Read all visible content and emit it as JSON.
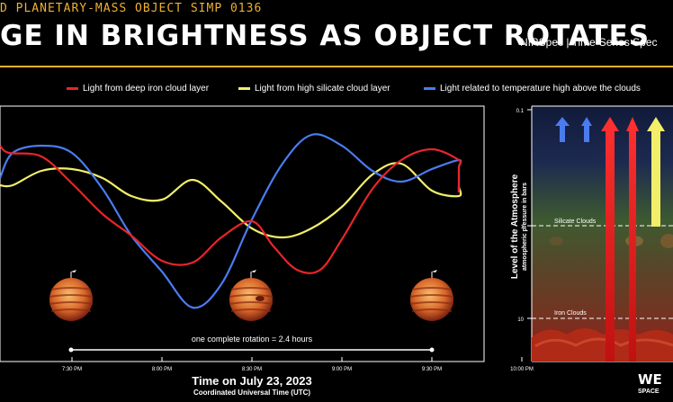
{
  "header": {
    "subtitle": "D PLANETARY-MASS OBJECT SIMP 0136",
    "title": "GE IN BRIGHTNESS AS OBJECT ROTATES",
    "instrument": "NIRSpec | Time-Series Spec"
  },
  "colors": {
    "iron": "#e8252a",
    "silicate": "#f2ee6a",
    "temperature": "#4a7cf0",
    "accent": "#f0b030"
  },
  "chart_data": [
    {
      "type": "line",
      "xlabel": "Time on July 23, 2023",
      "xsublabel": "Coordinated Universal Time (UTC)",
      "x_ticks": [
        "7:30 PM",
        "8:00 PM",
        "8:30 PM",
        "9:00 PM",
        "9:30 PM",
        "10:00 PM"
      ],
      "x_tick_hours": [
        19.5,
        20.0,
        20.5,
        21.0,
        21.5,
        22.0
      ],
      "xlim": [
        19.0,
        22.1
      ],
      "ylim": [
        0,
        1
      ],
      "annotation": "one complete rotation = 2.4 hours",
      "series": [
        {
          "name": "Light from deep iron cloud layer",
          "color_key": "iron",
          "x": [
            19.0,
            19.15,
            19.33,
            19.5,
            19.67,
            19.83,
            20.0,
            20.17,
            20.33,
            20.5,
            20.62,
            20.75,
            20.88,
            21.0,
            21.17,
            21.33,
            21.5,
            21.67,
            21.83,
            22.0,
            22.1
          ],
          "y": [
            0.84,
            0.8,
            0.78,
            0.63,
            0.46,
            0.34,
            0.2,
            0.19,
            0.33,
            0.42,
            0.28,
            0.15,
            0.15,
            0.32,
            0.6,
            0.76,
            0.82,
            0.76,
            0.72,
            0.62,
            0.58
          ]
        },
        {
          "name": "Light from high silicate cloud layer",
          "color_key": "silicate",
          "x": [
            19.0,
            19.17,
            19.33,
            19.5,
            19.67,
            19.83,
            20.0,
            20.17,
            20.33,
            20.5,
            20.67,
            20.83,
            21.0,
            21.17,
            21.33,
            21.5,
            21.67,
            21.83,
            22.0,
            22.1
          ],
          "y": [
            0.62,
            0.62,
            0.7,
            0.71,
            0.66,
            0.56,
            0.54,
            0.65,
            0.53,
            0.38,
            0.33,
            0.38,
            0.5,
            0.68,
            0.74,
            0.59,
            0.56,
            0.61,
            0.61,
            0.58
          ]
        },
        {
          "name": "Light related to temperature high above the clouds",
          "color_key": "temperature",
          "x": [
            19.0,
            19.17,
            19.33,
            19.5,
            19.67,
            19.83,
            20.0,
            20.17,
            20.33,
            20.5,
            20.67,
            20.83,
            21.0,
            21.17,
            21.33,
            21.5,
            21.67,
            21.83,
            22.0,
            22.1
          ],
          "y": [
            0.66,
            0.8,
            0.84,
            0.8,
            0.6,
            0.34,
            0.14,
            -0.06,
            0.07,
            0.43,
            0.74,
            0.9,
            0.84,
            0.7,
            0.64,
            0.71,
            0.76,
            0.72,
            0.67,
            0.6
          ]
        }
      ]
    },
    {
      "type": "diagram",
      "ylabel": "Level of the Atmosphere",
      "ysublabel": "atmospheric pressure in bars",
      "y_ticks": [
        "0.1",
        "1",
        "10"
      ],
      "scale": "log",
      "layers": [
        "Silicate Clouds",
        "Iron Clouds"
      ]
    }
  ],
  "footer": {
    "logo": "WE",
    "logo_sub": "SPACE"
  }
}
